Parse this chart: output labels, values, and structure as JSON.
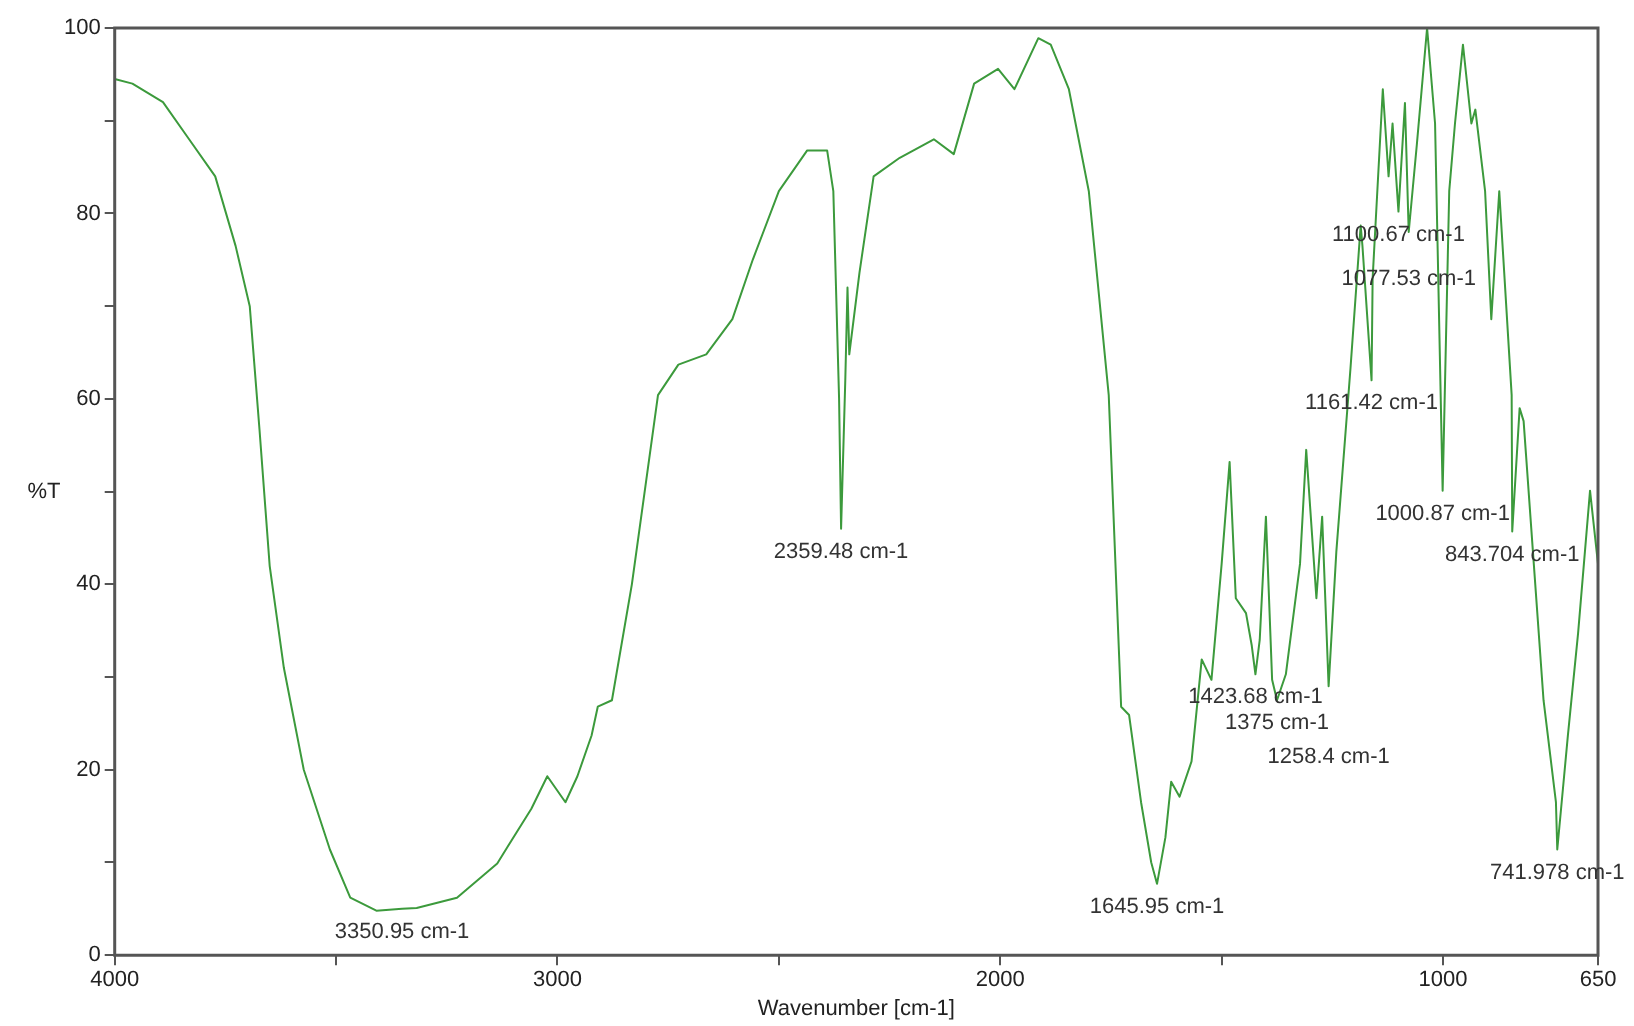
{
  "chart_data": {
    "type": "line",
    "xlabel": "Wavenumber [cm-1]",
    "ylabel": "%T",
    "xlim": [
      4000,
      650
    ],
    "ylim": [
      0,
      100
    ],
    "xticks": [
      4000,
      {
        "value": 3500,
        "label": null
      },
      3000,
      {
        "value": 2500,
        "label": null
      },
      2000,
      {
        "value": 1500,
        "label": null
      },
      1000,
      650
    ],
    "yticks": [
      0,
      {
        "value": 10,
        "label": null
      },
      20,
      {
        "value": 30,
        "label": null
      },
      40,
      {
        "value": 50,
        "label": null
      },
      60,
      {
        "value": 70,
        "label": null
      },
      80,
      {
        "value": 90,
        "label": null
      },
      100
    ],
    "grid": false,
    "legend": false,
    "marker": "none",
    "line_style": "solid",
    "series": [
      {
        "color": "#3c9a3c",
        "x": [
          4000,
          3960,
          3891,
          3832,
          3773,
          3727,
          3695,
          3673,
          3650,
          3618,
          3573,
          3514,
          3468,
          3409,
          3350.95,
          3318,
          3227,
          3136,
          3059,
          3023,
          2982,
          2955,
          2923,
          2909,
          2877,
          2832,
          2773,
          2727,
          2664,
          2605,
          2559,
          2500,
          2436,
          2391,
          2377,
          2364,
          2359.48,
          2350,
          2345,
          2341,
          2318,
          2286,
          2227,
          2150,
          2105,
          2059,
          2005,
          1968,
          1914,
          1886,
          1845,
          1800,
          1755,
          1727,
          1709,
          1682,
          1659,
          1645.95,
          1627,
          1614,
          1595,
          1568,
          1545,
          1523,
          1500,
          1482,
          1468,
          1445,
          1432,
          1423.68,
          1414,
          1400,
          1386,
          1375,
          1355,
          1323,
          1309,
          1286,
          1273,
          1258.4,
          1241,
          1209,
          1186,
          1182,
          1161.42,
          1159,
          1136,
          1123,
          1114,
          1100.67,
          1086,
          1077.53,
          1059,
          1036,
          1018,
          1000.87,
          986,
          973,
          955,
          936,
          927,
          905,
          891,
          873,
          845,
          843.704,
          827,
          818,
          795,
          773,
          745,
          741.978,
          718,
          695,
          668,
          650
        ],
        "values": [
          94.5,
          94,
          92,
          88,
          84,
          76.5,
          70,
          56.7,
          42,
          31,
          20,
          11.4,
          6.2,
          4.8,
          5,
          5.1,
          6.2,
          9.9,
          15.8,
          19.3,
          16.5,
          19.3,
          23.7,
          26.8,
          27.5,
          40,
          60.4,
          63.7,
          64.8,
          68.6,
          75,
          82.4,
          86.8,
          86.8,
          82.4,
          60,
          46,
          62,
          72,
          64.8,
          73.6,
          84,
          86,
          88,
          86.4,
          94,
          95.6,
          93.4,
          98.9,
          98.2,
          93.4,
          82.4,
          60.4,
          26.8,
          25.9,
          16.5,
          10,
          7.7,
          12.7,
          18.7,
          17.1,
          20.9,
          31.9,
          29.7,
          42.2,
          53.2,
          38.5,
          36.9,
          33.4,
          30.3,
          34,
          47.3,
          29.7,
          27.5,
          30.3,
          42.2,
          54.5,
          38.5,
          47.3,
          29,
          43.5,
          63.3,
          78.7,
          76.5,
          62,
          73,
          93.4,
          84,
          89.7,
          80.2,
          91.9,
          78,
          87.5,
          100,
          89.7,
          50.1,
          82.4,
          89.7,
          98.2,
          89.7,
          91.2,
          82.4,
          68.6,
          82.4,
          60.4,
          45.7,
          59,
          57.6,
          42.2,
          27.5,
          16.5,
          11.4,
          23.7,
          34.7,
          50.1,
          42.2
        ]
      }
    ],
    "annotations": [
      {
        "text": "3350.95 cm-1",
        "x": 3350.95,
        "y": 5
      },
      {
        "text": "2359.48 cm-1",
        "x": 2359.48,
        "y": 46
      },
      {
        "text": "1645.95 cm-1",
        "x": 1645.95,
        "y": 7.7
      },
      {
        "text": "1423.68 cm-1",
        "x": 1423.68,
        "y": 30.3
      },
      {
        "text": "1375 cm-1",
        "x": 1375,
        "y": 27.5
      },
      {
        "text": "1258.4 cm-1",
        "x": 1258.4,
        "y": 29
      },
      {
        "text": "1161.42 cm-1",
        "x": 1161.42,
        "y": 62
      },
      {
        "text": "1100.67 cm-1",
        "x": 1100.67,
        "y": 80.2
      },
      {
        "text": "1077.53 cm-1",
        "x": 1077.53,
        "y": 78
      },
      {
        "text": "1000.87 cm-1",
        "x": 1000.87,
        "y": 50.1
      },
      {
        "text": "843.704 cm-1",
        "x": 843.704,
        "y": 45.7
      },
      {
        "text": "741.978 cm-1",
        "x": 741.978,
        "y": 11.4
      }
    ]
  }
}
